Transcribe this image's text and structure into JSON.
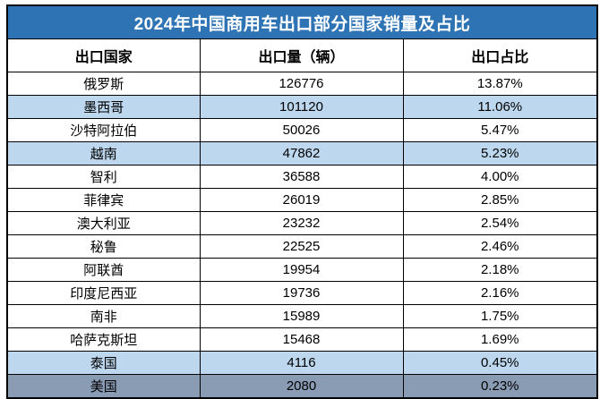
{
  "accent_colors": {
    "title_bg": "#2E74B5",
    "title_text": "#FFFFFF",
    "row_lightblue": "#BDD7EE",
    "row_bluegray": "#8A9BB4",
    "border": "#000000",
    "body_text": "#000000"
  },
  "table": {
    "title": "2024年中国商用车出口部分国家销量及占比",
    "columns": [
      "出口国家",
      "出口量（辆）",
      "出口占比"
    ],
    "rows": [
      {
        "country": "俄罗斯",
        "volume": "126776",
        "share": "13.87%",
        "bg": "white"
      },
      {
        "country": "墨西哥",
        "volume": "101120",
        "share": "11.06%",
        "bg": "lightblue"
      },
      {
        "country": "沙特阿拉伯",
        "volume": "50026",
        "share": "5.47%",
        "bg": "white"
      },
      {
        "country": "越南",
        "volume": "47862",
        "share": "5.23%",
        "bg": "lightblue"
      },
      {
        "country": "智利",
        "volume": "36588",
        "share": "4.00%",
        "bg": "white"
      },
      {
        "country": "菲律宾",
        "volume": "26019",
        "share": "2.85%",
        "bg": "white"
      },
      {
        "country": "澳大利亚",
        "volume": "23232",
        "share": "2.54%",
        "bg": "white"
      },
      {
        "country": "秘鲁",
        "volume": "22525",
        "share": "2.46%",
        "bg": "white"
      },
      {
        "country": "阿联酋",
        "volume": "19954",
        "share": "2.18%",
        "bg": "white"
      },
      {
        "country": "印度尼西亚",
        "volume": "19736",
        "share": "2.16%",
        "bg": "white"
      },
      {
        "country": "南非",
        "volume": "15989",
        "share": "1.75%",
        "bg": "white"
      },
      {
        "country": "哈萨克斯坦",
        "volume": "15468",
        "share": "1.69%",
        "bg": "white"
      },
      {
        "country": "泰国",
        "volume": "4116",
        "share": "0.45%",
        "bg": "lightblue"
      },
      {
        "country": "美国",
        "volume": "2080",
        "share": "0.23%",
        "bg": "bluegray"
      }
    ]
  },
  "chart_data": {
    "type": "table",
    "title": "2024年中国商用车出口部分国家销量及占比",
    "columns": [
      "出口国家",
      "出口量（辆）",
      "出口占比"
    ],
    "categories": [
      "俄罗斯",
      "墨西哥",
      "沙特阿拉伯",
      "越南",
      "智利",
      "菲律宾",
      "澳大利亚",
      "秘鲁",
      "阿联酋",
      "印度尼西亚",
      "南非",
      "哈萨克斯坦",
      "泰国",
      "美国"
    ],
    "series": [
      {
        "name": "出口量（辆）",
        "values": [
          126776,
          101120,
          50026,
          47862,
          36588,
          26019,
          23232,
          22525,
          19954,
          19736,
          15989,
          15468,
          4116,
          2080
        ]
      },
      {
        "name": "出口占比",
        "values": [
          "13.87%",
          "11.06%",
          "5.47%",
          "5.23%",
          "4.00%",
          "2.85%",
          "2.54%",
          "2.46%",
          "2.18%",
          "2.16%",
          "1.75%",
          "1.69%",
          "0.45%",
          "0.23%"
        ]
      }
    ],
    "layout_hints": {
      "highlighted_rows_lightblue": [
        "墨西哥",
        "越南",
        "泰国"
      ],
      "highlighted_rows_bluegray": [
        "美国"
      ],
      "grid": true,
      "alignment": "center"
    }
  }
}
